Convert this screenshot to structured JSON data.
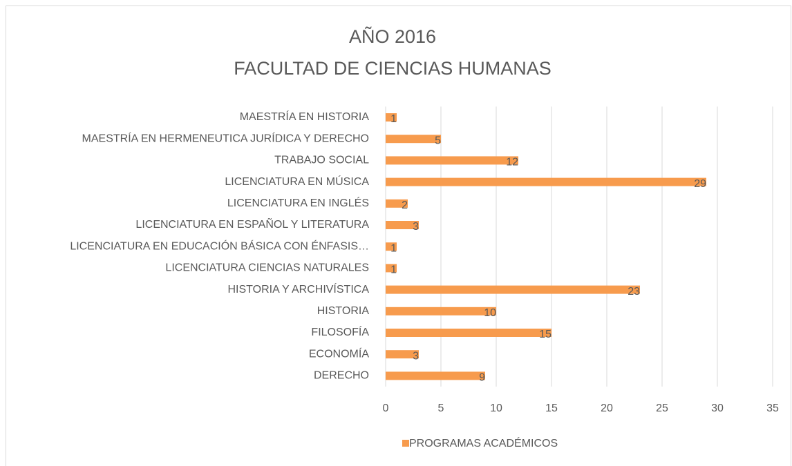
{
  "chart_data": {
    "type": "hbar",
    "title": [
      "AÑO 2016",
      "FACULTAD DE CIENCIAS HUMANAS"
    ],
    "categories": [
      "MAESTRÍA EN HISTORIA",
      "MAESTRÍA EN HERMENEUTICA JURÍDICA Y DERECHO",
      "TRABAJO SOCIAL",
      "LICENCIATURA EN MÚSICA",
      "LICENCIATURA EN INGLÉS",
      "LICENCIATURA EN ESPAÑOL Y LITERATURA",
      "LICENCIATURA EN EDUCACIÓN BÁSICA CON ÉNFASIS…",
      "LICENCIATURA CIENCIAS NATURALES",
      "HISTORIA Y ARCHIVÍSTICA",
      "HISTORIA",
      "FILOSOFÍA",
      "ECONOMÍA",
      "DERECHO"
    ],
    "series": [
      {
        "name": "PROGRAMAS ACADÉMICOS",
        "color": "#f79b4d",
        "values": [
          1,
          5,
          12,
          29,
          2,
          3,
          1,
          1,
          23,
          10,
          15,
          3,
          9
        ]
      }
    ],
    "xlim": [
      0,
      35
    ],
    "xticks": [
      0,
      5,
      10,
      15,
      20,
      25,
      30,
      35
    ],
    "grid": true,
    "legend": "bottom"
  }
}
